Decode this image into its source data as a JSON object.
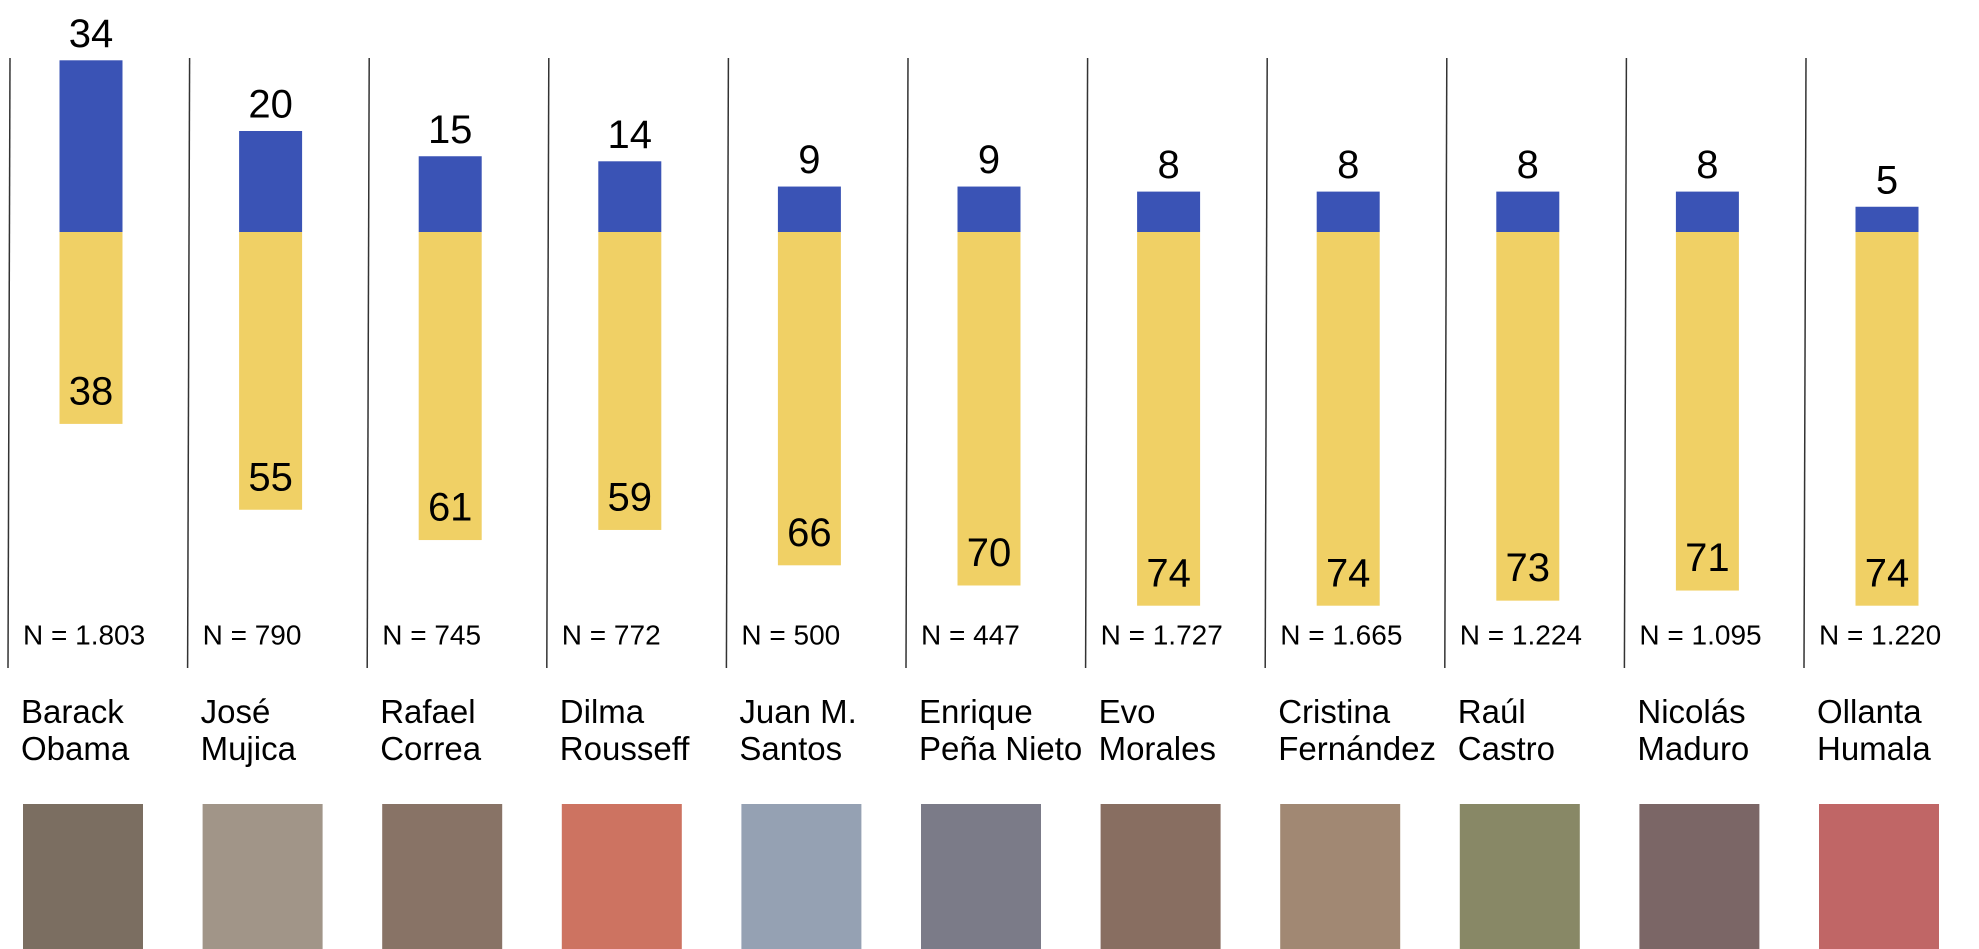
{
  "chart_data": {
    "type": "diverging-bar",
    "categories": [
      [
        "Barack",
        "Obama"
      ],
      [
        "José",
        "Mujica"
      ],
      [
        "Rafael",
        "Correa"
      ],
      [
        "Dilma",
        "Rousseff"
      ],
      [
        "Juan M.",
        "Santos"
      ],
      [
        "Enrique",
        "Peña Nieto"
      ],
      [
        "Evo",
        "Morales"
      ],
      [
        "Cristina",
        "Fernández"
      ],
      [
        "Raúl",
        "Castro"
      ],
      [
        "Nicolás",
        "Maduro"
      ],
      [
        "Ollanta",
        "Humala"
      ]
    ],
    "series": [
      {
        "color": "#3a53b5",
        "direction": "up",
        "values": [
          34,
          20,
          15,
          14,
          9,
          9,
          8,
          8,
          8,
          8,
          5
        ]
      },
      {
        "color": "#f0d065",
        "direction": "down",
        "values": [
          38,
          55,
          61,
          59,
          66,
          70,
          74,
          74,
          73,
          71,
          74
        ]
      }
    ],
    "n_labels": [
      "N = 1.803",
      "N = 790",
      "N = 745",
      "N = 772",
      "N = 500",
      "N = 447",
      "N = 1.727",
      "N = 1.665",
      "N = 1.224",
      "N = 1.095",
      "N = 1.220"
    ]
  }
}
